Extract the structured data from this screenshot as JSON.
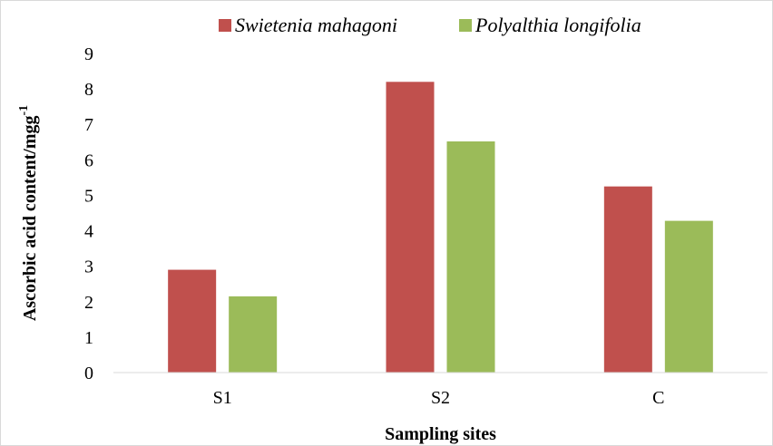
{
  "chart_data": {
    "type": "bar",
    "title": "",
    "xlabel": "Sampling sites",
    "ylabel": "Ascorbic acid content/mgg-1",
    "ylabel_base": "Ascorbic acid content/mgg",
    "ylabel_superscript": "-1",
    "categories": [
      "S1",
      "S2",
      "C"
    ],
    "ylim": [
      0,
      9
    ],
    "yticks": [
      0,
      1,
      2,
      3,
      4,
      5,
      6,
      7,
      8,
      9
    ],
    "grid": false,
    "legend_position": "top",
    "series": [
      {
        "name": "Swietenia mahagoni",
        "color": "#c0504d",
        "values": [
          2.9,
          8.2,
          5.25
        ]
      },
      {
        "name": "Polyalthia longifolia",
        "color": "#9bbb59",
        "values": [
          2.15,
          6.52,
          4.28
        ]
      }
    ]
  }
}
